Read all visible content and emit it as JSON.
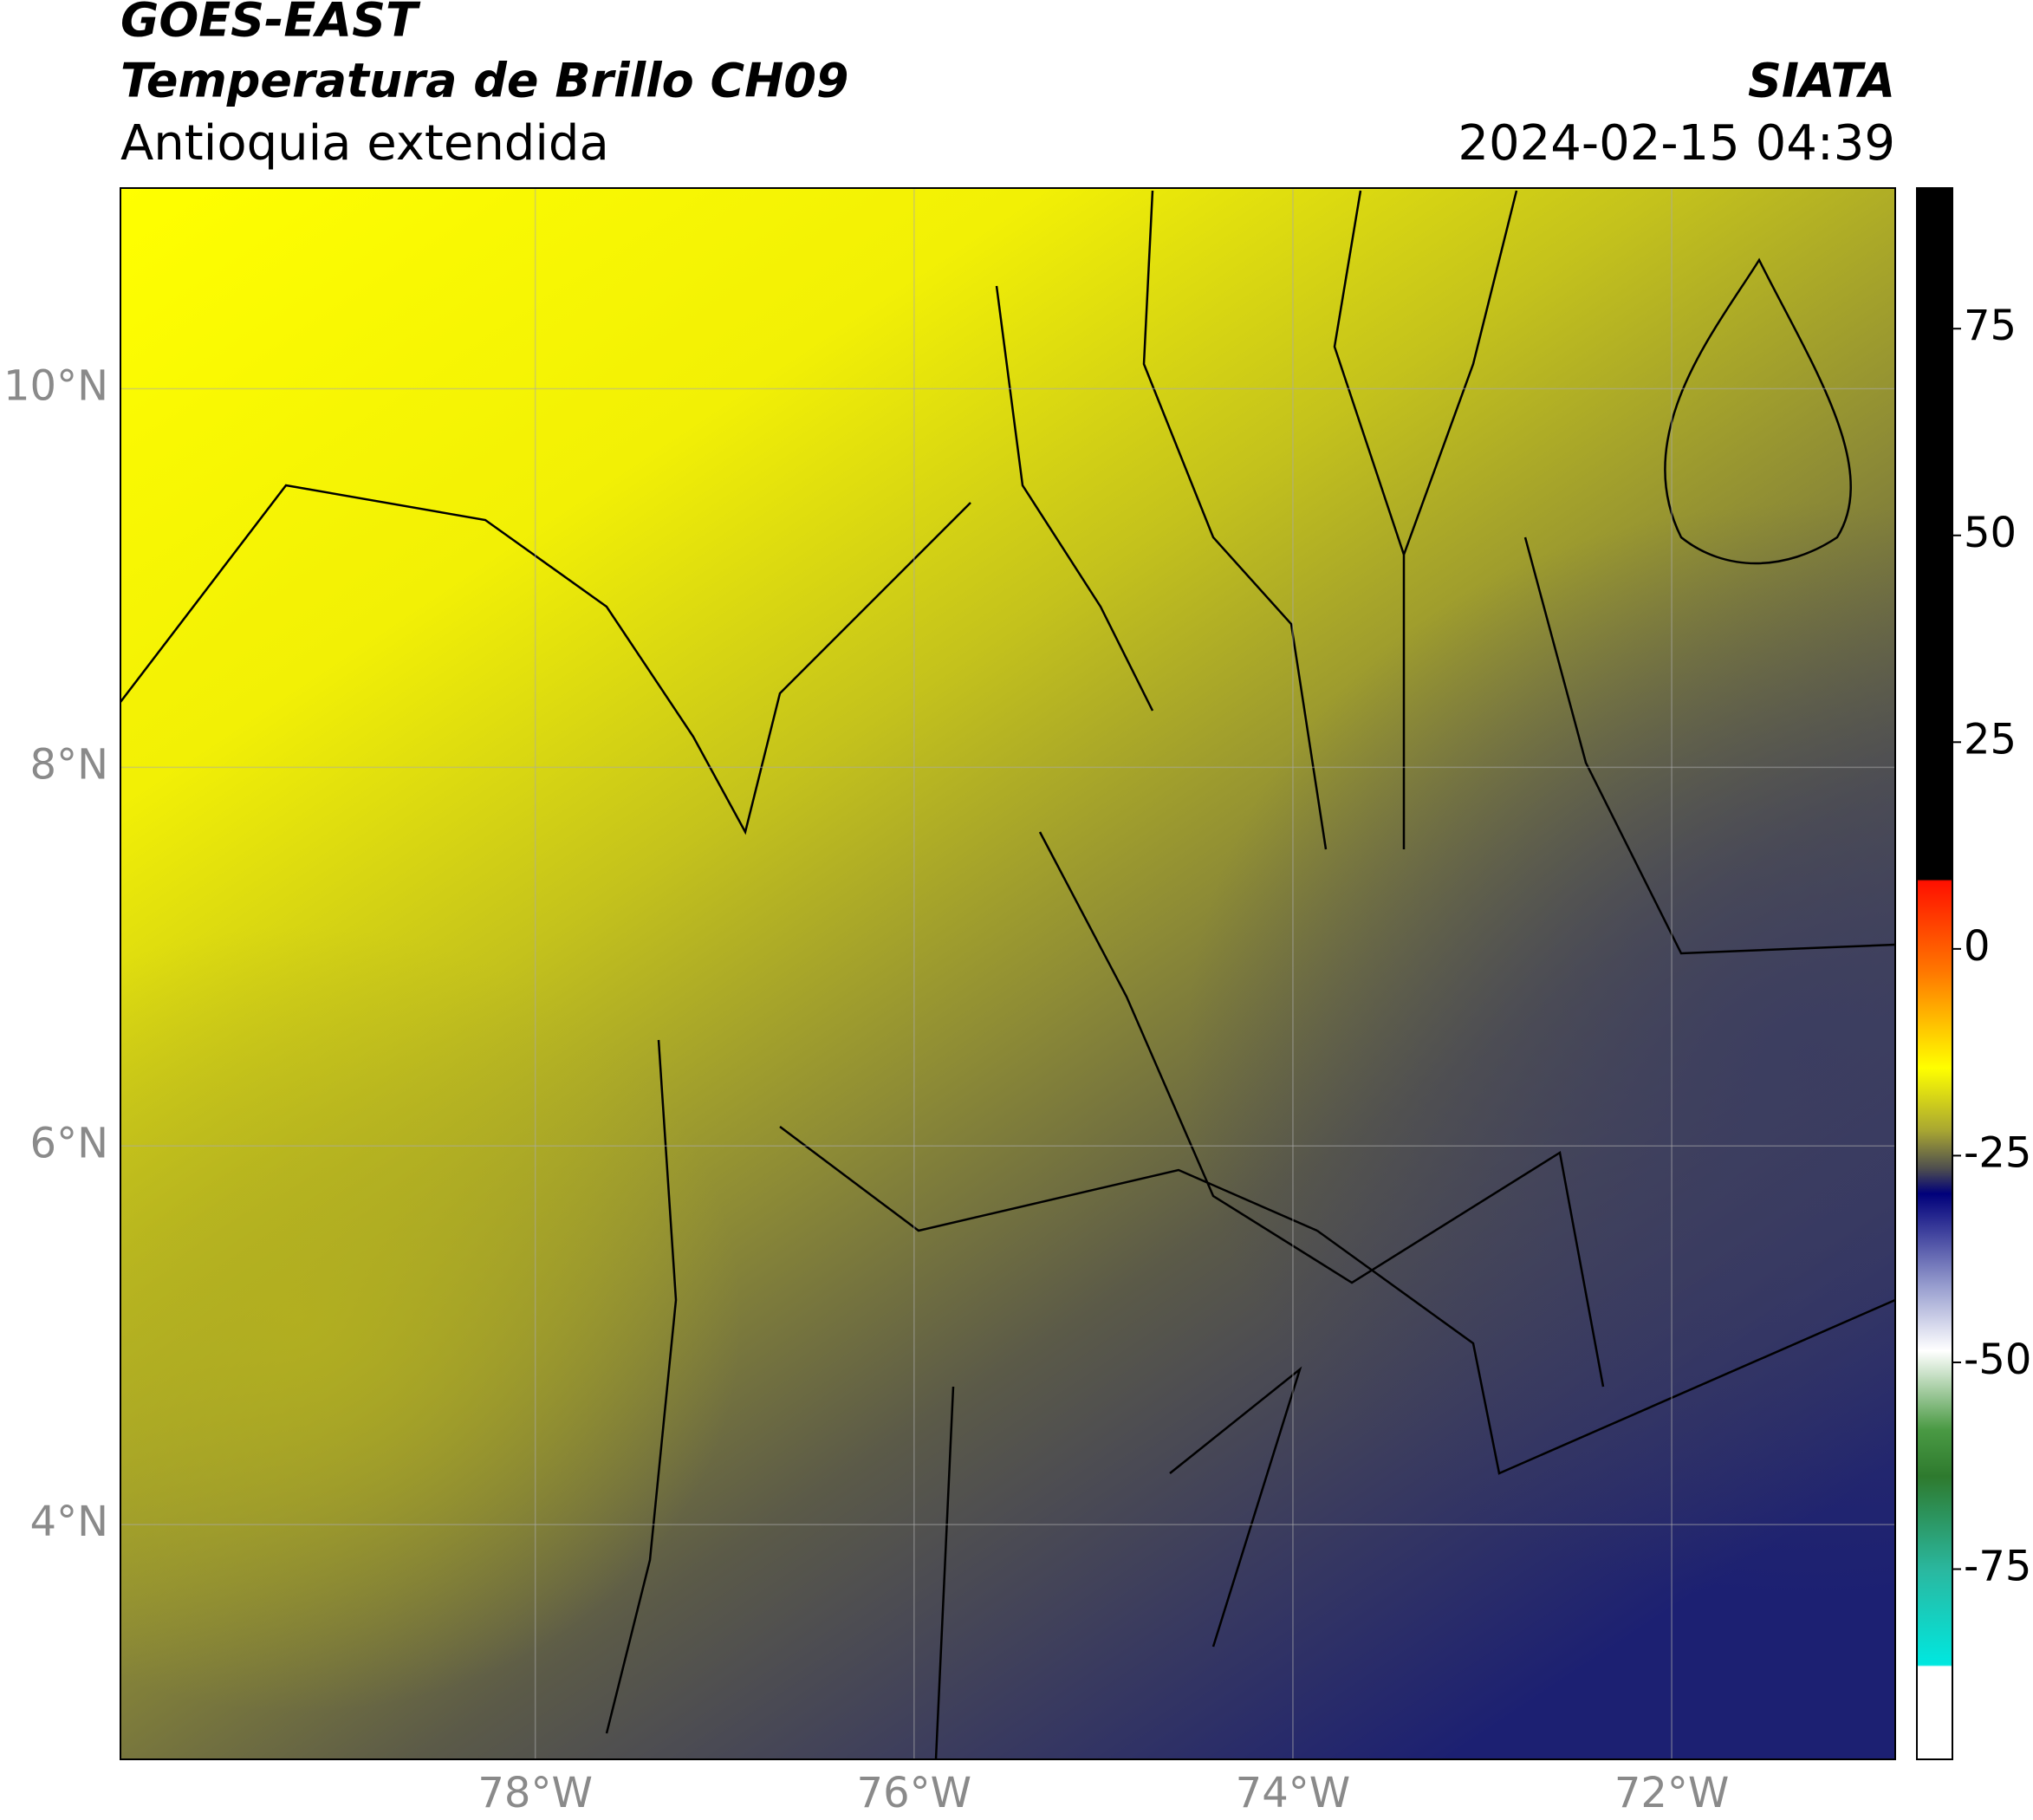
{
  "header": {
    "title": "GOES-EAST",
    "subtitle": "Temperatura de Brillo CH09",
    "region": "Antioquia extendida",
    "source": "SIATA",
    "datetime": "2024-02-15 04:39"
  },
  "chart_data": {
    "type": "map",
    "xlim": [
      -80.19,
      -70.82
    ],
    "ylim": [
      2.76,
      11.06
    ],
    "xticks": [
      {
        "value": -78,
        "label": "78°W"
      },
      {
        "value": -76,
        "label": "76°W"
      },
      {
        "value": -74,
        "label": "74°W"
      },
      {
        "value": -72,
        "label": "72°W"
      }
    ],
    "yticks": [
      {
        "value": 4,
        "label": "4°N"
      },
      {
        "value": 6,
        "label": "6°N"
      },
      {
        "value": 8,
        "label": "8°N"
      },
      {
        "value": 10,
        "label": "10°N"
      }
    ],
    "grid": true,
    "colorbar": {
      "lim": [
        -98,
        92
      ],
      "ticks": [
        75,
        50,
        25,
        0,
        -25,
        -50,
        -75
      ]
    }
  }
}
